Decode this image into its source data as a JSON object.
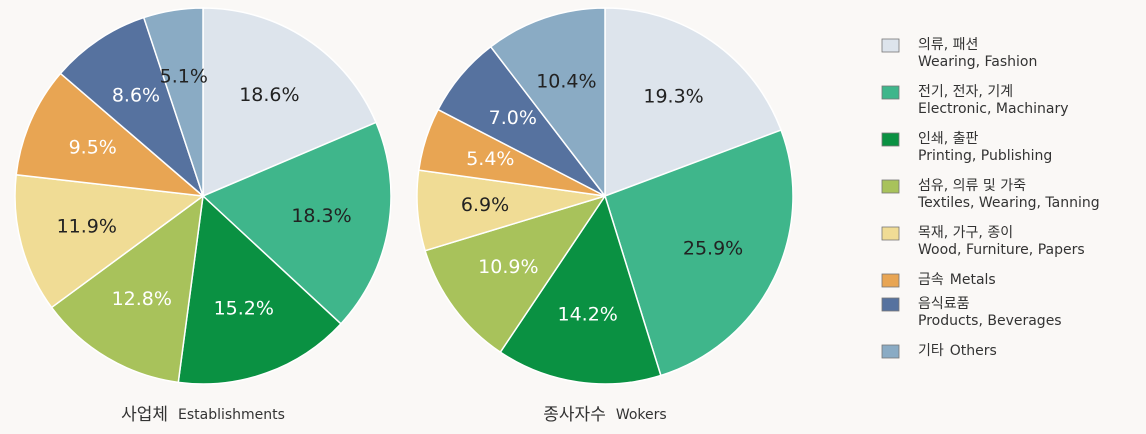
{
  "chart_data": [
    {
      "type": "pie",
      "title": "사업체",
      "subtitle": "Establishments",
      "values": [
        18.6,
        18.3,
        15.2,
        12.8,
        11.9,
        9.5,
        8.6,
        5.1
      ],
      "value_labels": [
        "18.6%",
        "18.3%",
        "15.2%",
        "12.8%",
        "11.9%",
        "9.5%",
        "8.6%",
        "5.1%"
      ]
    },
    {
      "type": "pie",
      "title": "종사자수",
      "subtitle": "Wokers",
      "values": [
        19.3,
        25.9,
        14.2,
        10.9,
        6.9,
        5.4,
        7.0,
        10.4
      ],
      "value_labels": [
        "19.3%",
        "25.9%",
        "14.2%",
        "10.9%",
        "6.9%",
        "5.4%",
        "7.0%",
        "10.4%"
      ]
    }
  ],
  "legend": [
    {
      "label": "의류, 패션",
      "label_en": "Wearing, Fashion",
      "color": "#dde4ec",
      "text_color": "#222222"
    },
    {
      "label": "전기, 전자, 기계",
      "label_en": "Electronic, Machinary",
      "color": "#3fb68b",
      "text_color": "#222222"
    },
    {
      "label": "인쇄, 출판",
      "label_en": "Printing, Publishing",
      "color": "#0a9142",
      "text_color": "#ffffff"
    },
    {
      "label": "섬유, 의류 및 가죽",
      "label_en": "Textiles, Wearing, Tanning",
      "color": "#a8c25b",
      "text_color": "#ffffff"
    },
    {
      "label": "목재, 가구, 종이",
      "label_en": "Wood, Furniture, Papers",
      "color": "#f0dc95",
      "text_color": "#222222"
    },
    {
      "label": "금속",
      "label_en": "Metals",
      "color": "#e8a553",
      "text_color": "#ffffff"
    },
    {
      "label": "음식료품",
      "label_en": "Products, Beverages",
      "color": "#56729f",
      "text_color": "#ffffff"
    },
    {
      "label": "기타",
      "label_en": "Others",
      "color": "#8aabc4",
      "text_color": "#222222"
    }
  ]
}
